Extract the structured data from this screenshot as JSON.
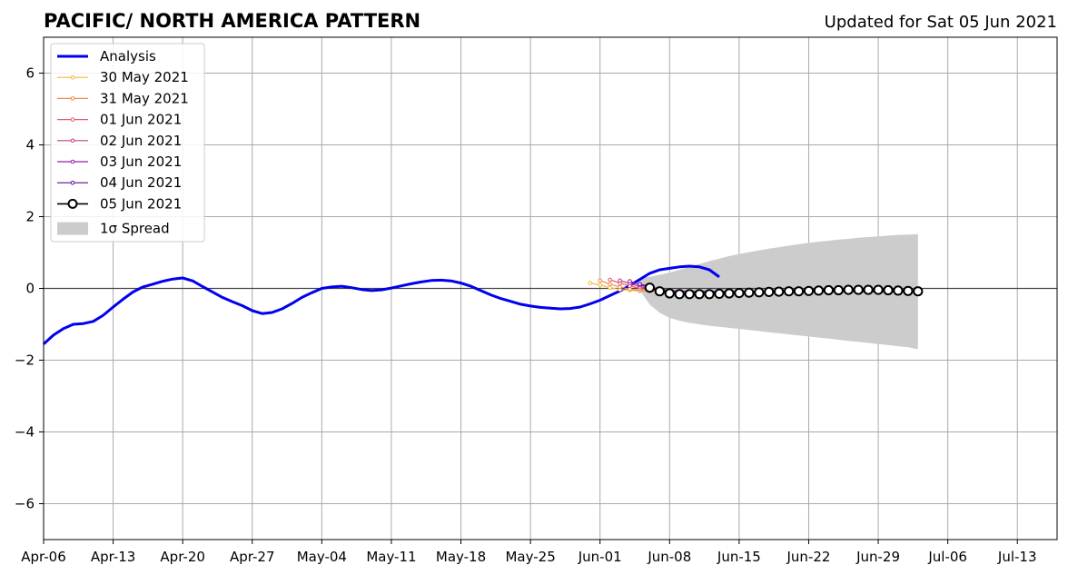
{
  "chart_data": {
    "type": "line",
    "title": "PACIFIC/ NORTH AMERICA PATTERN",
    "subtitle": "Updated for Sat 05 Jun 2021",
    "xlabel": "",
    "ylabel": "",
    "xlim": [
      "2021-04-06",
      "2021-07-17"
    ],
    "ylim": [
      -7,
      7
    ],
    "grid": true,
    "legend_position": "top-left",
    "x_ticks": [
      "Apr-06",
      "Apr-13",
      "Apr-20",
      "Apr-27",
      "May-04",
      "May-11",
      "May-18",
      "May-25",
      "Jun-01",
      "Jun-08",
      "Jun-15",
      "Jun-22",
      "Jun-29",
      "Jul-06",
      "Jul-13"
    ],
    "y_ticks": [
      -6,
      -4,
      -2,
      0,
      2,
      4,
      6
    ],
    "y_tick_labels": [
      "−6",
      "−4",
      "−2",
      "0",
      "2",
      "4",
      "6"
    ],
    "series": [
      {
        "name": "Analysis",
        "color": "#0000ee",
        "start": "2021-04-06",
        "values": [
          -1.55,
          -1.3,
          -1.12,
          -1.0,
          -0.98,
          -0.92,
          -0.75,
          -0.52,
          -0.3,
          -0.1,
          0.04,
          0.12,
          0.2,
          0.26,
          0.29,
          0.21,
          0.05,
          -0.1,
          -0.25,
          -0.37,
          -0.48,
          -0.62,
          -0.7,
          -0.67,
          -0.57,
          -0.42,
          -0.25,
          -0.12,
          0.0,
          0.04,
          0.06,
          0.02,
          -0.03,
          -0.06,
          -0.04,
          0.01,
          0.07,
          0.13,
          0.18,
          0.22,
          0.23,
          0.21,
          0.15,
          0.06,
          -0.06,
          -0.18,
          -0.28,
          -0.36,
          -0.44,
          -0.49,
          -0.53,
          -0.55,
          -0.57,
          -0.56,
          -0.52,
          -0.43,
          -0.33,
          -0.2,
          -0.07,
          0.08,
          0.25,
          0.42,
          0.52,
          0.56,
          0.6,
          0.62,
          0.6,
          0.52,
          0.32
        ]
      },
      {
        "name": "30 May 2021",
        "color": "#f5b63a",
        "start": "2021-05-31",
        "values": [
          0.15,
          0.1,
          0.02,
          -0.03,
          -0.05,
          -0.07,
          -0.08,
          -0.1,
          -0.1,
          -0.1,
          -0.1,
          -0.1,
          -0.1,
          -0.1,
          -0.1,
          -0.1,
          -0.1,
          -0.1,
          -0.1,
          -0.1,
          -0.1,
          -0.1,
          -0.1,
          -0.1,
          -0.1,
          -0.1,
          -0.1,
          -0.1,
          -0.1,
          -0.1,
          -0.1,
          -0.1,
          -0.1
        ]
      },
      {
        "name": "31 May 2021",
        "color": "#f08a46",
        "start": "2021-06-01",
        "values": [
          0.22,
          0.12,
          0.04,
          -0.02,
          -0.05,
          -0.08,
          -0.09,
          -0.1,
          -0.1,
          -0.1,
          -0.1,
          -0.1,
          -0.1,
          -0.1,
          -0.1,
          -0.1,
          -0.1,
          -0.1,
          -0.1,
          -0.1,
          -0.1,
          -0.1,
          -0.1,
          -0.1,
          -0.1,
          -0.1,
          -0.1,
          -0.1,
          -0.1,
          -0.1,
          -0.1,
          -0.1
        ]
      },
      {
        "name": "01 Jun 2021",
        "color": "#e05c6e",
        "start": "2021-06-02",
        "values": [
          0.24,
          0.15,
          0.07,
          0.0,
          -0.04,
          -0.07,
          -0.08,
          -0.09,
          -0.09,
          -0.09,
          -0.09,
          -0.09,
          -0.09,
          -0.09,
          -0.09,
          -0.09,
          -0.09,
          -0.09,
          -0.09,
          -0.09,
          -0.09,
          -0.09,
          -0.09,
          -0.09,
          -0.09,
          -0.09,
          -0.09,
          -0.09,
          -0.09,
          -0.09,
          -0.09
        ]
      },
      {
        "name": "02 Jun 2021",
        "color": "#c0408a",
        "start": "2021-06-03",
        "values": [
          0.22,
          0.14,
          0.05,
          -0.01,
          -0.05,
          -0.07,
          -0.08,
          -0.08,
          -0.08,
          -0.08,
          -0.08,
          -0.08,
          -0.08,
          -0.08,
          -0.08,
          -0.08,
          -0.08,
          -0.08,
          -0.08,
          -0.08,
          -0.08,
          -0.08,
          -0.08,
          -0.08,
          -0.08,
          -0.08,
          -0.08,
          -0.08,
          -0.08,
          -0.08
        ]
      },
      {
        "name": "03 Jun 2021",
        "color": "#9a1ea8",
        "start": "2021-06-04",
        "values": [
          0.2,
          0.1,
          0.02,
          -0.04,
          -0.07,
          -0.08,
          -0.08,
          -0.08,
          -0.08,
          -0.08,
          -0.08,
          -0.08,
          -0.08,
          -0.08,
          -0.08,
          -0.08,
          -0.08,
          -0.08,
          -0.08,
          -0.08,
          -0.08,
          -0.08,
          -0.08,
          -0.08,
          -0.08,
          -0.08,
          -0.08,
          -0.08,
          -0.08
        ]
      },
      {
        "name": "04 Jun 2021",
        "color": "#5a0a9a",
        "start": "2021-06-05",
        "values": [
          0.12,
          0.05,
          -0.02,
          -0.06,
          -0.08,
          -0.09,
          -0.09,
          -0.09,
          -0.09,
          -0.09,
          -0.09,
          -0.09,
          -0.09,
          -0.09,
          -0.09,
          -0.09,
          -0.09,
          -0.09,
          -0.09,
          -0.09,
          -0.09,
          -0.09,
          -0.09,
          -0.09,
          -0.09,
          -0.09,
          -0.09,
          -0.09
        ]
      },
      {
        "name": "05 Jun 2021",
        "color": "#000000",
        "start": "2021-06-06",
        "values": [
          0.02,
          -0.08,
          -0.14,
          -0.16,
          -0.16,
          -0.16,
          -0.16,
          -0.15,
          -0.14,
          -0.13,
          -0.12,
          -0.11,
          -0.1,
          -0.09,
          -0.08,
          -0.08,
          -0.07,
          -0.06,
          -0.05,
          -0.05,
          -0.04,
          -0.04,
          -0.04,
          -0.04,
          -0.05,
          -0.06,
          -0.07,
          -0.08
        ]
      }
    ],
    "spread": {
      "name": "1σ Spread",
      "color": "#cccccc",
      "start": "2021-06-05",
      "upper": [
        0.3,
        0.32,
        0.38,
        0.44,
        0.52,
        0.6,
        0.68,
        0.76,
        0.83,
        0.9,
        0.96,
        1.01,
        1.06,
        1.11,
        1.15,
        1.19,
        1.23,
        1.27,
        1.3,
        1.33,
        1.36,
        1.38,
        1.41,
        1.43,
        1.45,
        1.47,
        1.49,
        1.5,
        1.51
      ],
      "lower": [
        -0.05,
        -0.45,
        -0.68,
        -0.82,
        -0.9,
        -0.96,
        -1.0,
        -1.04,
        -1.07,
        -1.1,
        -1.13,
        -1.16,
        -1.19,
        -1.22,
        -1.25,
        -1.28,
        -1.31,
        -1.34,
        -1.37,
        -1.4,
        -1.43,
        -1.46,
        -1.49,
        -1.52,
        -1.55,
        -1.58,
        -1.61,
        -1.64,
        -1.7
      ]
    }
  }
}
